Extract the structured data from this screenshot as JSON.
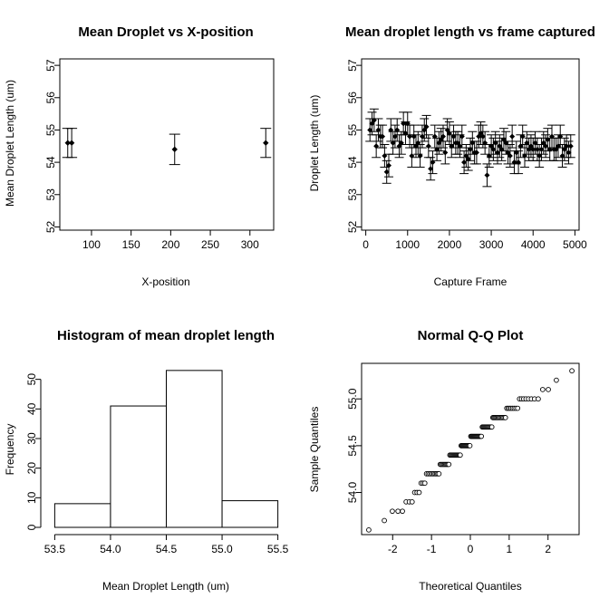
{
  "chart_data": [
    {
      "type": "scatter",
      "title": "Mean Droplet vs X-position",
      "xlabel": "X-position",
      "ylabel": "Mean Droplet Length (um)",
      "xlim": [
        60,
        330
      ],
      "ylim": [
        51.9,
        57.2
      ],
      "xticks": [
        100,
        150,
        200,
        250,
        300
      ],
      "yticks": [
        52,
        53,
        54,
        55,
        56,
        57
      ],
      "error_bars": true,
      "points": [
        {
          "x": 70,
          "y": 54.6,
          "err": 0.45
        },
        {
          "x": 75,
          "y": 54.6,
          "err": 0.45
        },
        {
          "x": 205,
          "y": 54.4,
          "err": 0.47
        },
        {
          "x": 320,
          "y": 54.6,
          "err": 0.45
        }
      ]
    },
    {
      "type": "scatter",
      "title": "Mean droplet length vs frame captured",
      "xlabel": "Capture Frame",
      "ylabel": "Droplet Length (um)",
      "xlim": [
        -100,
        5100
      ],
      "ylim": [
        51.9,
        57.2
      ],
      "xticks": [
        0,
        1000,
        2000,
        3000,
        4000,
        5000
      ],
      "yticks": [
        52,
        53,
        54,
        55,
        56,
        57
      ],
      "error_bars": true,
      "error_halfwidth": 0.35,
      "x": [
        100,
        150,
        200,
        250,
        300,
        350,
        400,
        450,
        500,
        550,
        600,
        650,
        700,
        750,
        800,
        850,
        900,
        950,
        1000,
        1050,
        1100,
        1150,
        1200,
        1250,
        1300,
        1350,
        1400,
        1450,
        1500,
        1550,
        1600,
        1650,
        1700,
        1750,
        1800,
        1850,
        1900,
        1950,
        2000,
        2050,
        2100,
        2150,
        2200,
        2250,
        2300,
        2350,
        2400,
        2450,
        2500,
        2550,
        2600,
        2650,
        2700,
        2750,
        2800,
        2850,
        2900,
        2950,
        3000,
        3050,
        3100,
        3150,
        3200,
        3250,
        3300,
        3350,
        3400,
        3450,
        3500,
        3550,
        3600,
        3650,
        3700,
        3750,
        3800,
        3850,
        3900,
        3950,
        4000,
        4050,
        4100,
        4150,
        4200,
        4250,
        4300,
        4350,
        4400,
        4450,
        4500,
        4550,
        4600,
        4650,
        4700,
        4750,
        4800,
        4850,
        4900
      ],
      "y": [
        55.0,
        55.2,
        55.3,
        54.5,
        55.0,
        54.8,
        54.8,
        54.2,
        53.7,
        53.9,
        55.0,
        54.6,
        54.8,
        55.0,
        54.5,
        54.6,
        55.2,
        54.9,
        55.2,
        54.8,
        54.2,
        54.8,
        54.5,
        54.6,
        54.2,
        54.8,
        55.0,
        55.1,
        54.5,
        53.8,
        54.0,
        54.8,
        54.4,
        54.6,
        54.7,
        54.8,
        54.3,
        55.0,
        54.9,
        54.5,
        54.8,
        54.6,
        54.6,
        54.5,
        54.8,
        54.0,
        54.2,
        54.1,
        54.4,
        54.6,
        54.3,
        54.3,
        54.8,
        54.9,
        54.8,
        54.6,
        53.6,
        54.2,
        54.5,
        54.4,
        54.6,
        54.3,
        54.5,
        54.4,
        54.7,
        54.6,
        54.3,
        54.2,
        54.8,
        54.0,
        54.3,
        54.0,
        54.5,
        54.8,
        54.2,
        54.6,
        54.4,
        54.5,
        54.4,
        54.6,
        54.4,
        54.2,
        54.4,
        54.6,
        54.5,
        54.7,
        54.4,
        54.8,
        54.4,
        54.4,
        54.5,
        54.8,
        54.2,
        54.4,
        54.5,
        54.3,
        54.5
      ]
    },
    {
      "type": "bar",
      "title": "Histogram of mean droplet length",
      "xlabel": "Mean Droplet Length (um)",
      "ylabel": "Frequency",
      "xlim": [
        53.44,
        55.56
      ],
      "ylim": [
        0,
        55
      ],
      "xticks": [
        53.5,
        54.0,
        54.5,
        55.0,
        55.5
      ],
      "yticks": [
        0,
        10,
        20,
        30,
        40,
        50
      ],
      "bins": [
        {
          "from": 53.5,
          "to": 54.0,
          "count": 8
        },
        {
          "from": 54.0,
          "to": 54.5,
          "count": 41
        },
        {
          "from": 54.5,
          "to": 55.0,
          "count": 53
        },
        {
          "from": 55.0,
          "to": 55.5,
          "count": 9
        }
      ]
    },
    {
      "type": "scatter",
      "title": "Normal Q-Q Plot",
      "xlabel": "Theoretical Quantiles",
      "ylabel": "Sample Quantiles",
      "xlim": [
        -2.8,
        2.8
      ],
      "ylim": [
        53.55,
        55.38
      ],
      "xticks": [
        -2,
        -1,
        0,
        1,
        2
      ],
      "yticks": [
        54.0,
        54.5,
        55.0
      ],
      "marker": "open-circle",
      "sample_levels": [
        53.6,
        53.7,
        53.8,
        53.8,
        53.8,
        53.9,
        53.9,
        53.9,
        54.0,
        54.0,
        54.0,
        54.1,
        54.1,
        54.1,
        54.2,
        54.2,
        54.2,
        54.2,
        54.2,
        54.2,
        54.2,
        54.2,
        54.2,
        54.2,
        54.3,
        54.3,
        54.3,
        54.3,
        54.3,
        54.3,
        54.3,
        54.3,
        54.3,
        54.4,
        54.4,
        54.4,
        54.4,
        54.4,
        54.4,
        54.4,
        54.4,
        54.4,
        54.4,
        54.4,
        54.4,
        54.5,
        54.5,
        54.5,
        54.5,
        54.5,
        54.5,
        54.5,
        54.5,
        54.5,
        54.5,
        54.5,
        54.6,
        54.6,
        54.6,
        54.6,
        54.6,
        54.6,
        54.6,
        54.6,
        54.6,
        54.6,
        54.6,
        54.6,
        54.6,
        54.7,
        54.7,
        54.7,
        54.7,
        54.7,
        54.7,
        54.7,
        54.7,
        54.7,
        54.7,
        54.7,
        54.8,
        54.8,
        54.8,
        54.8,
        54.8,
        54.8,
        54.8,
        54.8,
        54.8,
        54.8,
        54.8,
        54.8,
        54.9,
        54.9,
        54.9,
        54.9,
        54.9,
        54.9,
        54.9,
        54.9,
        55.0,
        55.0,
        55.0,
        55.0,
        55.0,
        55.0,
        55.0,
        55.0,
        55.1,
        55.1,
        55.2,
        55.3
      ]
    }
  ]
}
